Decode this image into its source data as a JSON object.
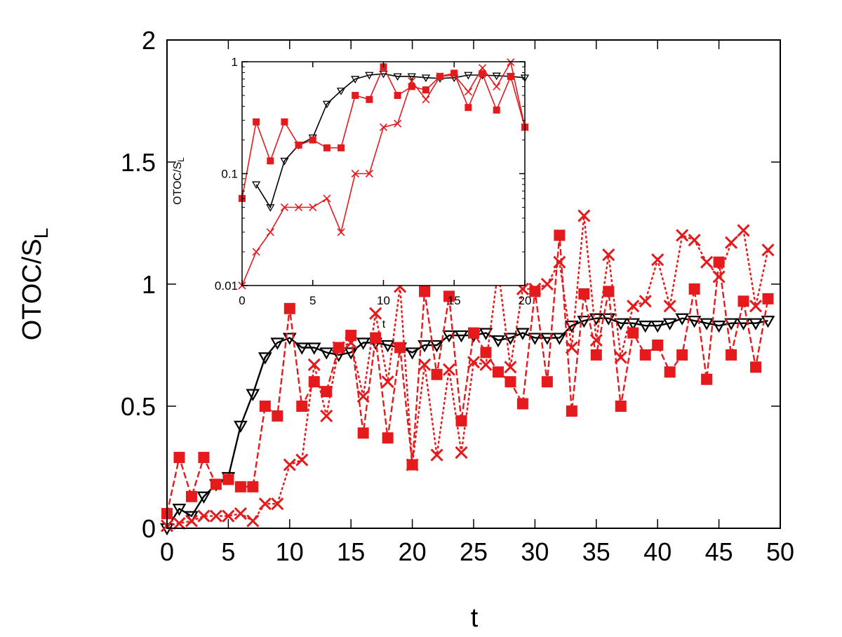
{
  "chart_data": [
    {
      "type": "line",
      "xlabel": "t",
      "ylabel": "OTOC/S",
      "ylabel_subscript": "L",
      "xlim": [
        0,
        50
      ],
      "ylim": [
        0,
        2
      ],
      "x_ticks": [
        "0",
        "5",
        "10",
        "15",
        "20",
        "25",
        "30",
        "35",
        "40",
        "45",
        "50"
      ],
      "y_ticks": [
        "0",
        "0.5",
        "1",
        "1.5",
        "2"
      ],
      "grid": false,
      "colors": {
        "black_series": "#000000",
        "red_series": "#e41a1c"
      },
      "series": [
        {
          "marker": "triangle-down-open",
          "color": "#000000",
          "line": "solid",
          "x": [
            0,
            1,
            2,
            3,
            4,
            5,
            6,
            7,
            8,
            9,
            10,
            11,
            12,
            13,
            14,
            15,
            16,
            17,
            18,
            19,
            20,
            21,
            22,
            23,
            24,
            25,
            26,
            27,
            28,
            29,
            30,
            31,
            32,
            33,
            34,
            35,
            36,
            37,
            38,
            39,
            40,
            41,
            42,
            43,
            44,
            45,
            46,
            47,
            48,
            49
          ],
          "y": [
            0.0,
            0.08,
            0.05,
            0.13,
            0.18,
            0.21,
            0.42,
            0.55,
            0.7,
            0.76,
            0.78,
            0.74,
            0.74,
            0.72,
            0.71,
            0.72,
            0.76,
            0.76,
            0.75,
            0.74,
            0.72,
            0.75,
            0.75,
            0.79,
            0.79,
            0.79,
            0.8,
            0.77,
            0.78,
            0.8,
            0.78,
            0.78,
            0.78,
            0.83,
            0.85,
            0.86,
            0.86,
            0.84,
            0.84,
            0.83,
            0.83,
            0.84,
            0.86,
            0.85,
            0.84,
            0.83,
            0.84,
            0.84,
            0.84,
            0.85
          ]
        },
        {
          "marker": "square-filled",
          "color": "#e41a1c",
          "line": "dashed",
          "x": [
            0,
            1,
            2,
            3,
            4,
            5,
            6,
            7,
            8,
            9,
            10,
            11,
            12,
            13,
            14,
            15,
            16,
            17,
            18,
            19,
            20,
            21,
            22,
            23,
            24,
            25,
            26,
            27,
            28,
            29,
            30,
            31,
            32,
            33,
            34,
            35,
            36,
            37,
            38,
            39,
            40,
            41,
            42,
            43,
            44,
            45,
            46,
            47,
            48,
            49
          ],
          "y": [
            0.06,
            0.29,
            0.13,
            0.29,
            0.18,
            0.2,
            0.17,
            0.17,
            0.5,
            0.46,
            0.9,
            0.5,
            0.6,
            0.56,
            0.74,
            0.79,
            0.39,
            0.78,
            0.37,
            0.74,
            0.26,
            0.97,
            0.63,
            0.95,
            0.44,
            0.8,
            0.72,
            0.64,
            0.6,
            0.51,
            0.97,
            0.6,
            1.2,
            0.48,
            0.96,
            0.71,
            0.97,
            0.5,
            0.8,
            0.71,
            0.75,
            0.64,
            0.71,
            0.98,
            0.61,
            1.09,
            0.71,
            0.93,
            0.66,
            0.94
          ]
        },
        {
          "marker": "x",
          "color": "#e41a1c",
          "line": "dotted",
          "x": [
            0,
            1,
            2,
            3,
            4,
            5,
            6,
            7,
            8,
            9,
            10,
            11,
            12,
            13,
            14,
            15,
            16,
            17,
            18,
            19,
            20,
            21,
            22,
            23,
            24,
            25,
            26,
            27,
            28,
            29,
            30,
            31,
            32,
            33,
            34,
            35,
            36,
            37,
            38,
            39,
            40,
            41,
            42,
            43,
            44,
            45,
            46,
            47,
            48,
            49
          ],
          "y": [
            0.01,
            0.02,
            0.03,
            0.05,
            0.05,
            0.05,
            0.06,
            0.03,
            0.1,
            0.1,
            0.26,
            0.28,
            0.67,
            0.46,
            0.74,
            0.76,
            0.54,
            0.88,
            0.6,
            0.99,
            0.26,
            0.67,
            0.3,
            0.65,
            0.31,
            0.68,
            0.67,
            1.06,
            0.66,
            0.98,
            0.98,
            1.0,
            1.09,
            0.74,
            1.28,
            0.77,
            1.12,
            0.7,
            0.91,
            0.93,
            1.1,
            0.91,
            1.2,
            1.18,
            1.09,
            1.03,
            1.17,
            1.22,
            0.91,
            1.14
          ]
        }
      ]
    },
    {
      "type": "line",
      "inset": true,
      "xlabel": "t",
      "ylabel": "OTOC/S",
      "ylabel_subscript": "L",
      "xlim": [
        0,
        20
      ],
      "ylim": [
        0.01,
        1
      ],
      "y_scale": "log",
      "x_ticks": [
        "0",
        "5",
        "10",
        "15",
        "20"
      ],
      "y_ticks": [
        "0.01",
        "0.1",
        "1"
      ],
      "grid": false,
      "series": [
        {
          "marker": "triangle-down-open",
          "color": "#000000",
          "line": "solid",
          "x": [
            1,
            2,
            3,
            4,
            5,
            6,
            7,
            8,
            9,
            10,
            11,
            12,
            13,
            14,
            15,
            16,
            17,
            18,
            19,
            20
          ],
          "y": [
            0.08,
            0.05,
            0.13,
            0.18,
            0.21,
            0.42,
            0.55,
            0.7,
            0.76,
            0.78,
            0.74,
            0.74,
            0.72,
            0.71,
            0.72,
            0.76,
            0.76,
            0.75,
            0.74,
            0.72
          ]
        },
        {
          "marker": "square-filled",
          "color": "#e41a1c",
          "line": "solid",
          "x": [
            0,
            1,
            2,
            3,
            4,
            5,
            6,
            7,
            8,
            9,
            10,
            11,
            12,
            13,
            14,
            15,
            16,
            17,
            18,
            19,
            20
          ],
          "y": [
            0.06,
            0.29,
            0.13,
            0.29,
            0.18,
            0.2,
            0.17,
            0.17,
            0.5,
            0.46,
            0.9,
            0.5,
            0.6,
            0.56,
            0.74,
            0.79,
            0.39,
            0.78,
            0.37,
            0.74,
            0.26
          ]
        },
        {
          "marker": "x",
          "color": "#e41a1c",
          "line": "solid",
          "x": [
            0,
            1,
            2,
            3,
            4,
            5,
            6,
            7,
            8,
            9,
            10,
            11,
            12,
            13,
            14,
            15,
            16,
            17,
            18,
            19,
            20
          ],
          "y": [
            0.01,
            0.02,
            0.03,
            0.05,
            0.05,
            0.05,
            0.06,
            0.03,
            0.1,
            0.1,
            0.26,
            0.28,
            0.67,
            0.46,
            0.74,
            0.76,
            0.54,
            0.88,
            0.6,
            0.99,
            0.26
          ]
        }
      ]
    }
  ]
}
